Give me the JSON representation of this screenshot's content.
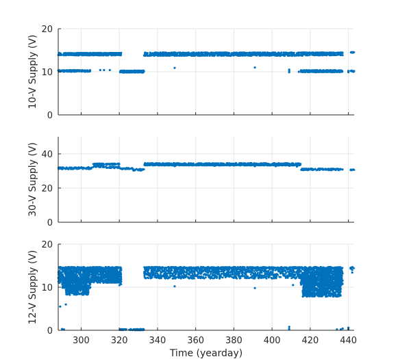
{
  "chart_data": [
    {
      "type": "scatter",
      "ylabel": "10-V Supply (V)",
      "xlim": [
        288,
        443
      ],
      "ylim": [
        0,
        20
      ],
      "yticks": [
        0,
        10,
        20
      ],
      "xticks": [
        300,
        320,
        340,
        360,
        380,
        400,
        420,
        440
      ],
      "grid": true,
      "color": "#0072bd",
      "bands": [
        {
          "x": [
            288,
            321
          ],
          "y": [
            14.2,
            14.4
          ]
        },
        {
          "x": [
            288,
            321
          ],
          "y": [
            13.8,
            14.0
          ]
        },
        {
          "x": [
            288,
            305
          ],
          "y": [
            10.2,
            10.4
          ]
        },
        {
          "x": [
            288,
            305
          ],
          "y": [
            10.0,
            10.2
          ]
        },
        {
          "x": [
            320,
            333
          ],
          "y": [
            10.1,
            10.3
          ]
        },
        {
          "x": [
            320,
            333
          ],
          "y": [
            9.8,
            10.0
          ]
        },
        {
          "x": [
            333,
            416
          ],
          "y": [
            14.2,
            14.5
          ]
        },
        {
          "x": [
            333,
            416
          ],
          "y": [
            13.7,
            14.0
          ]
        },
        {
          "x": [
            415,
            437
          ],
          "y": [
            14.3,
            14.5
          ]
        },
        {
          "x": [
            415,
            437
          ],
          "y": [
            13.8,
            14.1
          ]
        },
        {
          "x": [
            415,
            437
          ],
          "y": [
            10.2,
            10.4
          ]
        },
        {
          "x": [
            415,
            437
          ],
          "y": [
            9.9,
            10.1
          ]
        },
        {
          "x": [
            441,
            443
          ],
          "y": [
            14.4,
            14.6
          ]
        },
        {
          "x": [
            441,
            443
          ],
          "y": [
            10.0,
            10.3
          ]
        }
      ],
      "points": [
        {
          "x": 310,
          "y": 10.4
        },
        {
          "x": 312,
          "y": 10.4
        },
        {
          "x": 315,
          "y": 10.4
        },
        {
          "x": 349,
          "y": 10.9
        },
        {
          "x": 391,
          "y": 11.0
        },
        {
          "x": 409,
          "y": 10.5
        },
        {
          "x": 409,
          "y": 10.2
        },
        {
          "x": 409,
          "y": 9.9
        },
        {
          "x": 414,
          "y": 10.0
        },
        {
          "x": 440,
          "y": 9.9
        },
        {
          "x": 440,
          "y": 10.2
        }
      ]
    },
    {
      "type": "scatter",
      "ylabel": "30-V Supply (V)",
      "xlim": [
        288,
        443
      ],
      "ylim": [
        0,
        50
      ],
      "yticks": [
        0,
        20,
        40
      ],
      "xticks": [
        300,
        320,
        340,
        360,
        380,
        400,
        420,
        440
      ],
      "grid": true,
      "color": "#0072bd",
      "bands": [
        {
          "x": [
            288,
            306
          ],
          "y": [
            31.0,
            32.2
          ]
        },
        {
          "x": [
            306,
            320
          ],
          "y": [
            33.6,
            34.4
          ]
        },
        {
          "x": [
            306,
            313
          ],
          "y": [
            32.2,
            33.2
          ]
        },
        {
          "x": [
            313,
            320
          ],
          "y": [
            31.6,
            32.6
          ]
        },
        {
          "x": [
            320,
            327
          ],
          "y": [
            31.0,
            31.8
          ]
        },
        {
          "x": [
            327,
            333
          ],
          "y": [
            30.2,
            31.2
          ]
        },
        {
          "x": [
            333,
            415
          ],
          "y": [
            33.6,
            34.6
          ]
        },
        {
          "x": [
            333,
            415
          ],
          "y": [
            33.2,
            33.6
          ]
        },
        {
          "x": [
            415,
            437
          ],
          "y": [
            30.4,
            31.4
          ]
        },
        {
          "x": [
            441,
            443
          ],
          "y": [
            30.4,
            31.0
          ]
        }
      ],
      "points": [
        {
          "x": 349,
          "y": 32.8
        },
        {
          "x": 370,
          "y": 33.0
        },
        {
          "x": 391,
          "y": 32.8
        },
        {
          "x": 409,
          "y": 33.0
        },
        {
          "x": 413,
          "y": 32.6
        },
        {
          "x": 402,
          "y": 32.8
        }
      ]
    },
    {
      "type": "scatter",
      "xlabel": "Time (yearday)",
      "ylabel": "12-V Supply (V)",
      "xlim": [
        288,
        443
      ],
      "ylim": [
        0,
        20
      ],
      "yticks": [
        0,
        10,
        20
      ],
      "xticks": [
        300,
        320,
        340,
        360,
        380,
        400,
        420,
        440
      ],
      "grid": true,
      "color": "#0072bd",
      "bands": [
        {
          "x": [
            288,
            321
          ],
          "y": [
            14.3,
            14.7
          ]
        },
        {
          "x": [
            288,
            321
          ],
          "y": [
            11.0,
            14.3
          ]
        },
        {
          "x": [
            290,
            305
          ],
          "y": [
            9.8,
            12.0
          ]
        },
        {
          "x": [
            292,
            304
          ],
          "y": [
            8.2,
            10.2
          ]
        },
        {
          "x": [
            306,
            313
          ],
          "y": [
            13.5,
            14.3
          ]
        },
        {
          "x": [
            313,
            320
          ],
          "y": [
            11.0,
            13.6
          ]
        },
        {
          "x": [
            320,
            321
          ],
          "y": [
            10.2,
            12.0
          ]
        },
        {
          "x": [
            320,
            333
          ],
          "y": [
            0.0,
            0.3
          ]
        },
        {
          "x": [
            333,
            415
          ],
          "y": [
            14.3,
            14.7
          ]
        },
        {
          "x": [
            333,
            415
          ],
          "y": [
            12.0,
            14.3
          ]
        },
        {
          "x": [
            413,
            437
          ],
          "y": [
            14.3,
            14.7
          ]
        },
        {
          "x": [
            415,
            437
          ],
          "y": [
            10.5,
            14.3
          ]
        },
        {
          "x": [
            416,
            436
          ],
          "y": [
            7.8,
            11.0
          ]
        },
        {
          "x": [
            441,
            443
          ],
          "y": [
            14.3,
            14.7
          ]
        }
      ],
      "points": [
        {
          "x": 289,
          "y": 5.5
        },
        {
          "x": 290,
          "y": 0.3
        },
        {
          "x": 291,
          "y": 0.2
        },
        {
          "x": 292,
          "y": 6.0
        },
        {
          "x": 349,
          "y": 10.2
        },
        {
          "x": 391,
          "y": 9.8
        },
        {
          "x": 409,
          "y": 0.8
        },
        {
          "x": 409,
          "y": 0.3
        },
        {
          "x": 411,
          "y": 10.5
        },
        {
          "x": 434,
          "y": 0.2
        },
        {
          "x": 436,
          "y": 0.2
        },
        {
          "x": 437,
          "y": 0.4
        },
        {
          "x": 440,
          "y": 0.6
        },
        {
          "x": 440,
          "y": 0.2
        },
        {
          "x": 442,
          "y": 13.4
        },
        {
          "x": 442,
          "y": 14.0
        }
      ]
    }
  ]
}
